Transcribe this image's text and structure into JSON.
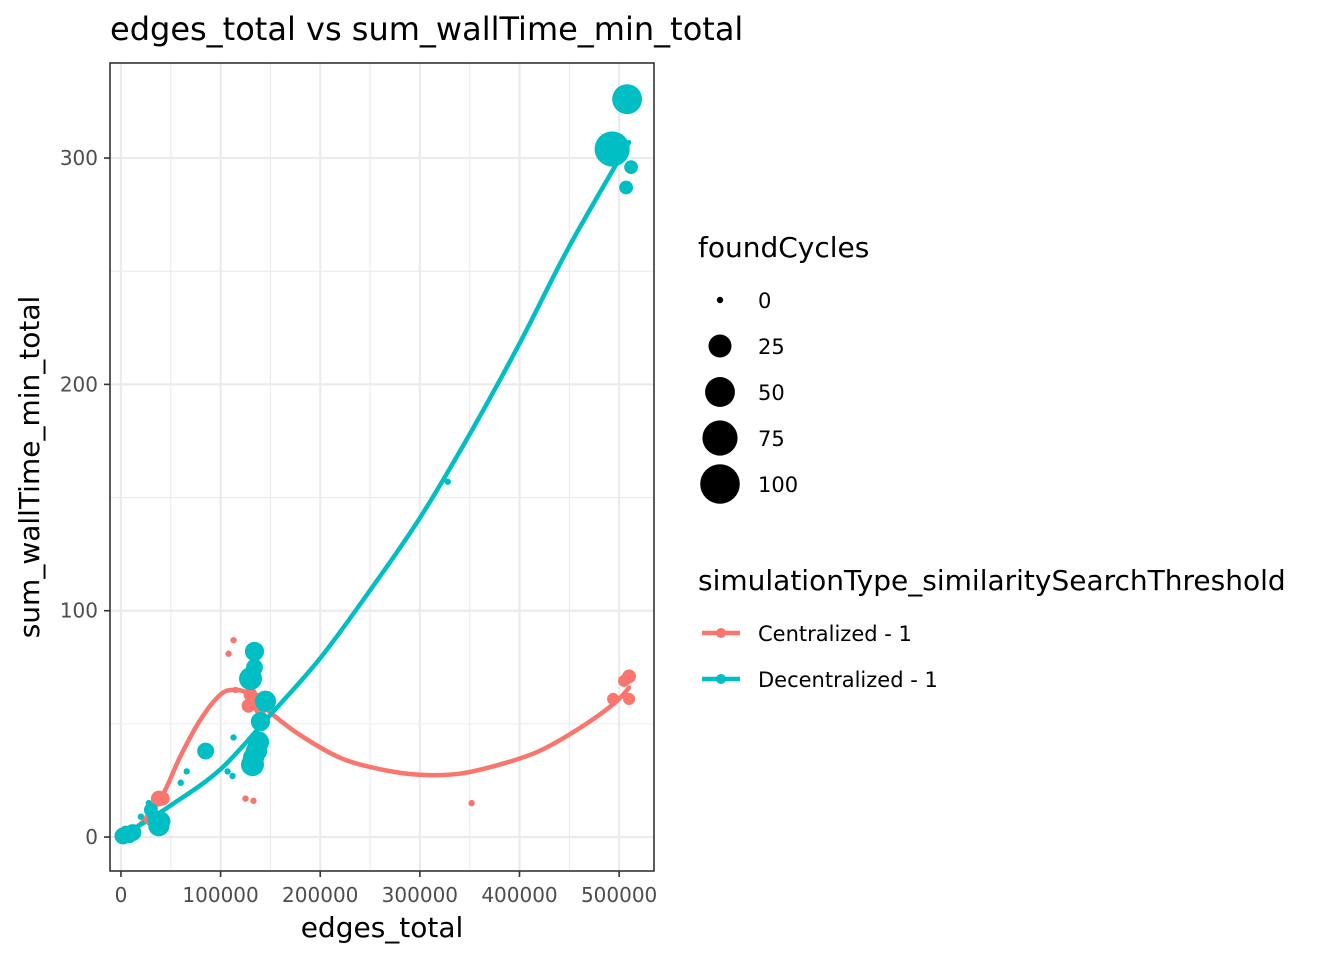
{
  "title": "edges_total  vs  sum_wallTime_min_total",
  "chart_data": {
    "type": "scatter",
    "title": "edges_total  vs  sum_wallTime_min_total",
    "xlabel": "edges_total",
    "ylabel": "sum_wallTime_min_total",
    "xlim": [
      -11000,
      535000
    ],
    "ylim": [
      -15,
      342
    ],
    "x_ticks": [
      0,
      100000,
      200000,
      300000,
      400000,
      500000
    ],
    "x_tick_labels": [
      "0",
      "100000",
      "200000",
      "300000",
      "400000",
      "500000"
    ],
    "y_ticks": [
      0,
      100,
      200,
      300
    ],
    "y_tick_labels": [
      "0",
      "100",
      "200",
      "300"
    ],
    "grid": true,
    "size_legend": {
      "title": "foundCycles",
      "breaks": [
        0,
        25,
        50,
        75,
        100
      ],
      "labels": [
        "0",
        "25",
        "50",
        "75",
        "100"
      ]
    },
    "color_legend": {
      "title": "simulationType_similaritySearchThreshold",
      "placement": "right"
    },
    "series": [
      {
        "name": "Centralized - 1",
        "color": "#F8766D",
        "points": [
          {
            "x": 1000,
            "y": 0.5,
            "size": 0
          },
          {
            "x": 3000,
            "y": 1,
            "size": 2
          },
          {
            "x": 6000,
            "y": 2,
            "size": 0
          },
          {
            "x": 30000,
            "y": 8,
            "size": 5
          },
          {
            "x": 38000,
            "y": 17,
            "size": 8
          },
          {
            "x": 42000,
            "y": 17,
            "size": 5
          },
          {
            "x": 108000,
            "y": 81,
            "size": 0
          },
          {
            "x": 113000,
            "y": 87,
            "size": 0
          },
          {
            "x": 115000,
            "y": 65,
            "size": 0
          },
          {
            "x": 125000,
            "y": 17,
            "size": 0
          },
          {
            "x": 128000,
            "y": 58,
            "size": 5
          },
          {
            "x": 130000,
            "y": 63,
            "size": 5
          },
          {
            "x": 133000,
            "y": 16,
            "size": 0
          },
          {
            "x": 135000,
            "y": 60,
            "size": 10
          },
          {
            "x": 140000,
            "y": 57,
            "size": 5
          },
          {
            "x": 352000,
            "y": 15,
            "size": 0
          },
          {
            "x": 494000,
            "y": 61,
            "size": 3
          },
          {
            "x": 505000,
            "y": 69,
            "size": 3
          },
          {
            "x": 510000,
            "y": 71,
            "size": 5
          },
          {
            "x": 510000,
            "y": 61,
            "size": 3
          }
        ],
        "smooth": [
          [
            0,
            0
          ],
          [
            20000,
            6
          ],
          [
            40000,
            17
          ],
          [
            60000,
            36
          ],
          [
            80000,
            52
          ],
          [
            100000,
            63
          ],
          [
            115000,
            65
          ],
          [
            130000,
            63
          ],
          [
            150000,
            55
          ],
          [
            180000,
            45
          ],
          [
            220000,
            35
          ],
          [
            260000,
            30
          ],
          [
            300000,
            27.5
          ],
          [
            340000,
            28
          ],
          [
            380000,
            32
          ],
          [
            420000,
            38
          ],
          [
            460000,
            48
          ],
          [
            495000,
            59
          ],
          [
            510000,
            66
          ]
        ]
      },
      {
        "name": "Decentralized - 1",
        "color": "#00BFC4",
        "points": [
          {
            "x": 2000,
            "y": 0.5,
            "size": 10
          },
          {
            "x": 5000,
            "y": 2,
            "size": 5
          },
          {
            "x": 8000,
            "y": 1,
            "size": 10
          },
          {
            "x": 12000,
            "y": 2,
            "size": 10
          },
          {
            "x": 20000,
            "y": 9,
            "size": 0
          },
          {
            "x": 28000,
            "y": 15,
            "size": 0
          },
          {
            "x": 30000,
            "y": 12,
            "size": 5
          },
          {
            "x": 35000,
            "y": 8,
            "size": 10
          },
          {
            "x": 38000,
            "y": 5,
            "size": 20
          },
          {
            "x": 40000,
            "y": 7,
            "size": 15
          },
          {
            "x": 60000,
            "y": 24,
            "size": 0
          },
          {
            "x": 66000,
            "y": 29,
            "size": 0
          },
          {
            "x": 85000,
            "y": 38,
            "size": 10
          },
          {
            "x": 107000,
            "y": 29,
            "size": 0
          },
          {
            "x": 112000,
            "y": 27,
            "size": 0
          },
          {
            "x": 113000,
            "y": 44,
            "size": 0
          },
          {
            "x": 130000,
            "y": 70,
            "size": 25
          },
          {
            "x": 132000,
            "y": 32,
            "size": 25
          },
          {
            "x": 133000,
            "y": 35,
            "size": 20
          },
          {
            "x": 134000,
            "y": 75,
            "size": 10
          },
          {
            "x": 134000,
            "y": 82,
            "size": 15
          },
          {
            "x": 136000,
            "y": 38,
            "size": 20
          },
          {
            "x": 138000,
            "y": 42,
            "size": 20
          },
          {
            "x": 140000,
            "y": 51,
            "size": 15
          },
          {
            "x": 145000,
            "y": 60,
            "size": 20
          },
          {
            "x": 328000,
            "y": 157,
            "size": 0
          },
          {
            "x": 493000,
            "y": 304,
            "size": 75
          },
          {
            "x": 508000,
            "y": 326,
            "size": 50
          },
          {
            "x": 507000,
            "y": 287,
            "size": 5
          },
          {
            "x": 512000,
            "y": 296,
            "size": 5
          }
        ],
        "smooth": [
          [
            0,
            0
          ],
          [
            50000,
            14
          ],
          [
            100000,
            30
          ],
          [
            150000,
            54
          ],
          [
            200000,
            79
          ],
          [
            250000,
            109
          ],
          [
            300000,
            141
          ],
          [
            350000,
            178
          ],
          [
            400000,
            218
          ],
          [
            450000,
            261
          ],
          [
            510000,
            307
          ]
        ]
      }
    ]
  }
}
